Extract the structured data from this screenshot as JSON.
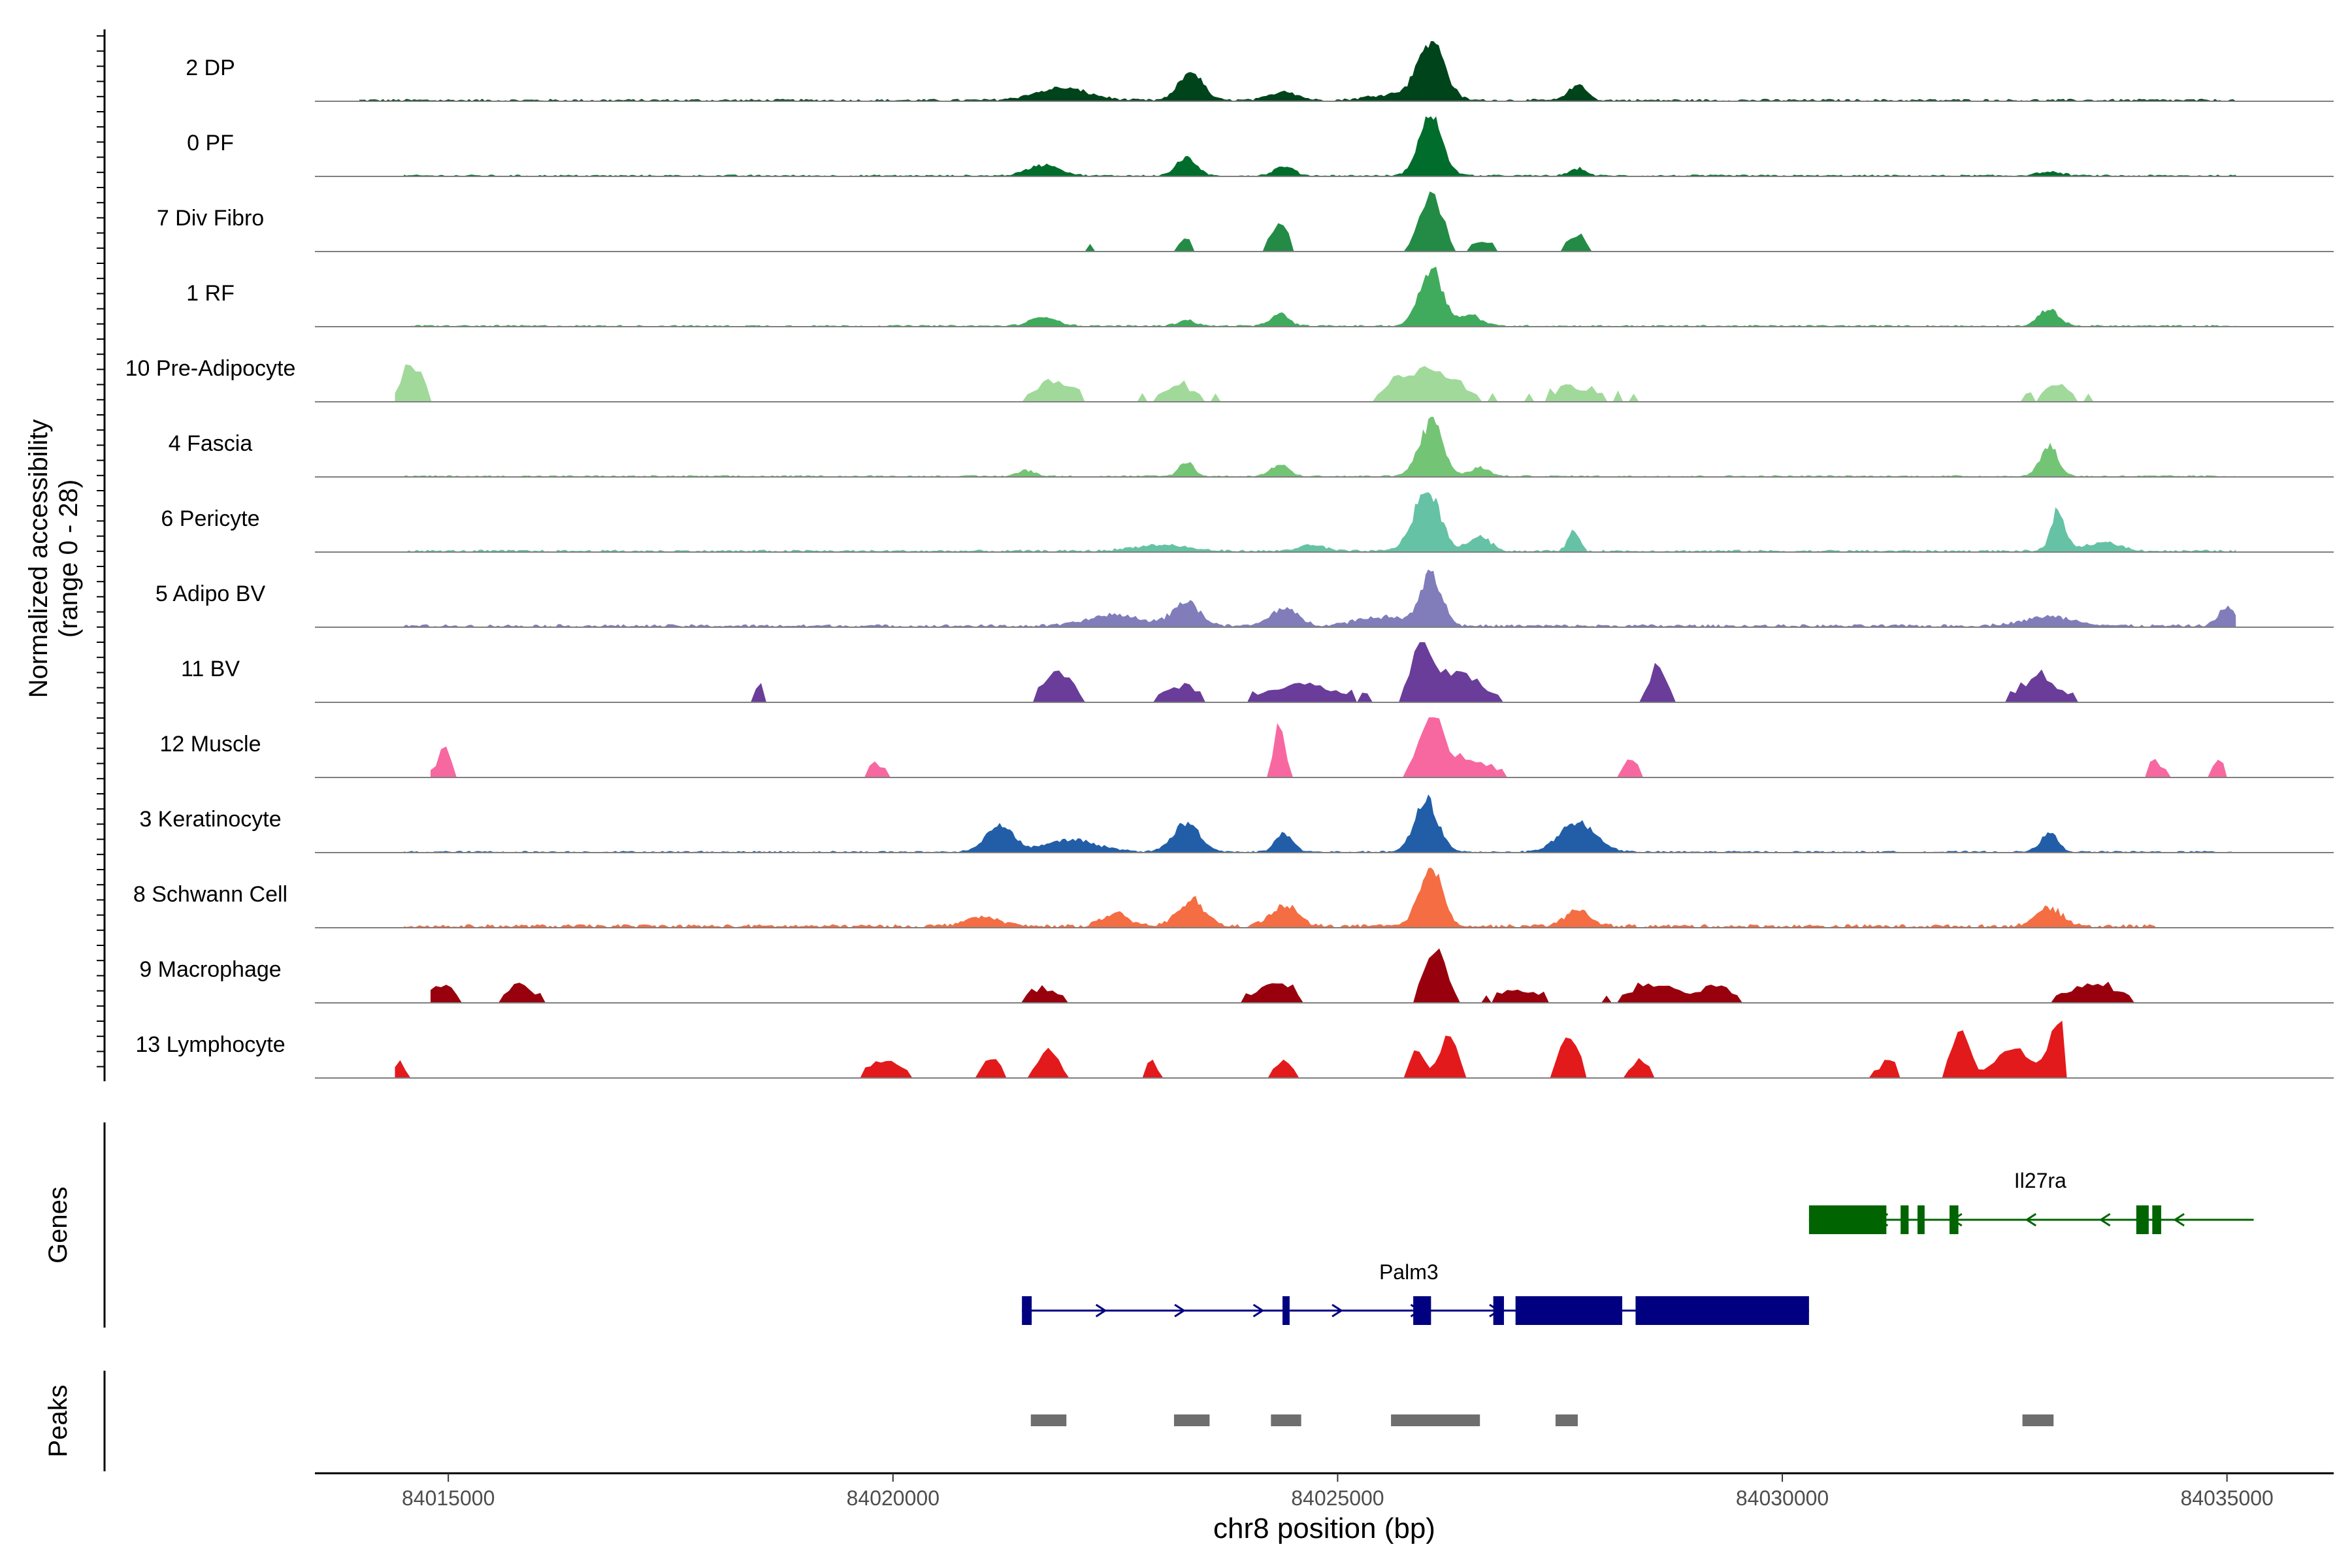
{
  "chart_data": {
    "type": "area",
    "title": "",
    "region": "chr8",
    "xlabel": "chr8 position (bp)",
    "ylabel": [
      "Normalized accessibility",
      "(range 0 - 28)"
    ],
    "y_range": [
      0,
      28
    ],
    "xlim": [
      84013500,
      84036200
    ],
    "x_ticks": [
      84015000,
      84020000,
      84025000,
      84030000,
      84035000
    ],
    "x_tick_labels": [
      "84015000",
      "84020000",
      "84025000",
      "84030000",
      "84035000"
    ],
    "track_axis_labels": {
      "genes": "Genes",
      "peaks": "Peaks"
    },
    "series": [
      {
        "name": "2 DP",
        "color": "#00441b",
        "style": "smooth",
        "noise": 0.04,
        "span": [
          84014000,
          84035100
        ],
        "peaks": [
          [
            84026050,
            150,
            1.0
          ],
          [
            84023350,
            130,
            0.48
          ],
          [
            84021900,
            300,
            0.2
          ],
          [
            84024400,
            150,
            0.15
          ],
          [
            84027700,
            100,
            0.25
          ],
          [
            84025600,
            250,
            0.1
          ]
        ]
      },
      {
        "name": "0 PF",
        "color": "#006d2c",
        "style": "smooth",
        "noise": 0.03,
        "span": [
          84014500,
          84035100
        ],
        "peaks": [
          [
            84026050,
            130,
            1.0
          ],
          [
            84023300,
            110,
            0.3
          ],
          [
            84021700,
            180,
            0.18
          ],
          [
            84024400,
            110,
            0.15
          ],
          [
            84027700,
            90,
            0.12
          ],
          [
            84033000,
            150,
            0.06
          ]
        ]
      },
      {
        "name": "7 Div Fibro",
        "color": "#238b45",
        "style": "blocky",
        "noise": 0.05,
        "span": [
          84014400,
          84034300
        ],
        "peaks": [
          [
            84026050,
            120,
            1.0
          ],
          [
            84024350,
            90,
            0.5
          ],
          [
            84023300,
            80,
            0.2
          ],
          [
            84027700,
            100,
            0.25
          ],
          [
            84026600,
            150,
            0.15
          ],
          [
            84022200,
            60,
            0.15
          ],
          [
            84025400,
            200,
            0.1
          ]
        ]
      },
      {
        "name": "1 RF",
        "color": "#41ab5d",
        "style": "smooth",
        "noise": 0.03,
        "span": [
          84014500,
          84035100
        ],
        "peaks": [
          [
            84026050,
            130,
            1.0
          ],
          [
            84033000,
            110,
            0.28
          ],
          [
            84024350,
            100,
            0.2
          ],
          [
            84021700,
            150,
            0.15
          ],
          [
            84023300,
            100,
            0.1
          ],
          [
            84026500,
            120,
            0.18
          ]
        ]
      },
      {
        "name": "10 Pre-Adipocyte",
        "color": "#a1d99b",
        "style": "blocky",
        "noise": 0.12,
        "span": [
          84014400,
          84034000
        ],
        "peaks": [
          [
            84014600,
            120,
            0.6
          ],
          [
            84026100,
            300,
            0.45
          ],
          [
            84021800,
            200,
            0.35
          ],
          [
            84023200,
            200,
            0.25
          ],
          [
            84025700,
            200,
            0.22
          ],
          [
            84027700,
            300,
            0.2
          ],
          [
            84033100,
            150,
            0.3
          ]
        ]
      },
      {
        "name": "4 Fascia",
        "color": "#74c476",
        "style": "smooth",
        "noise": 0.03,
        "span": [
          84014500,
          84035100
        ],
        "peaks": [
          [
            84026050,
            130,
            0.9
          ],
          [
            84033000,
            100,
            0.5
          ],
          [
            84023300,
            80,
            0.25
          ],
          [
            84024350,
            100,
            0.2
          ],
          [
            84026600,
            100,
            0.15
          ],
          [
            84021500,
            100,
            0.1
          ]
        ]
      },
      {
        "name": "6 Pericyte",
        "color": "#66c2a4",
        "style": "smooth",
        "noise": 0.04,
        "span": [
          84014500,
          84035100
        ],
        "peaks": [
          [
            84026000,
            150,
            1.0
          ],
          [
            84033100,
            80,
            0.65
          ],
          [
            84027650,
            60,
            0.35
          ],
          [
            84026600,
            120,
            0.25
          ],
          [
            84023000,
            300,
            0.1
          ],
          [
            84024700,
            150,
            0.1
          ],
          [
            84033600,
            200,
            0.15
          ]
        ]
      },
      {
        "name": "5 Adipo BV",
        "color": "#807dba",
        "style": "smooth",
        "noise": 0.05,
        "span": [
          84014500,
          84035100
        ],
        "peaks": [
          [
            84026050,
            120,
            0.85
          ],
          [
            84023300,
            150,
            0.4
          ],
          [
            84024400,
            150,
            0.3
          ],
          [
            84035000,
            100,
            0.3
          ],
          [
            84022500,
            300,
            0.18
          ],
          [
            84033000,
            300,
            0.15
          ],
          [
            84025500,
            300,
            0.15
          ]
        ]
      },
      {
        "name": "11 BV",
        "color": "#6a3d9a",
        "style": "blocky",
        "noise": 0.1,
        "span": [
          84018400,
          84034500
        ],
        "peaks": [
          [
            84025950,
            100,
            0.9
          ],
          [
            84026300,
            300,
            0.5
          ],
          [
            84021850,
            150,
            0.5
          ],
          [
            84028600,
            100,
            0.55
          ],
          [
            84032900,
            200,
            0.4
          ],
          [
            84024600,
            400,
            0.3
          ],
          [
            84023200,
            200,
            0.25
          ],
          [
            84018500,
            50,
            0.3
          ]
        ]
      },
      {
        "name": "12 Muscle",
        "color": "#f768a1",
        "style": "blocky",
        "noise": 0.08,
        "span": [
          84014800,
          84035000
        ],
        "peaks": [
          [
            84026050,
            140,
            1.0
          ],
          [
            84024350,
            60,
            0.9
          ],
          [
            84014950,
            70,
            0.5
          ],
          [
            84026500,
            200,
            0.3
          ],
          [
            84028300,
            80,
            0.3
          ],
          [
            84019800,
            80,
            0.25
          ],
          [
            84034900,
            60,
            0.3
          ],
          [
            84034200,
            60,
            0.3
          ]
        ]
      },
      {
        "name": "3 Keratinocyte",
        "color": "#225ea8",
        "style": "smooth",
        "noise": 0.03,
        "span": [
          84014500,
          84035100
        ],
        "peaks": [
          [
            84026000,
            130,
            0.85
          ],
          [
            84023300,
            150,
            0.48
          ],
          [
            84021200,
            150,
            0.45
          ],
          [
            84027700,
            200,
            0.5
          ],
          [
            84024400,
            100,
            0.3
          ],
          [
            84033000,
            100,
            0.3
          ],
          [
            84022000,
            300,
            0.2
          ]
        ]
      },
      {
        "name": "8 Schwann Cell",
        "color": "#f46d43",
        "style": "smooth",
        "noise": 0.06,
        "span": [
          84014500,
          84034200
        ],
        "peaks": [
          [
            84026050,
            130,
            1.0
          ],
          [
            84023350,
            150,
            0.45
          ],
          [
            84024400,
            150,
            0.35
          ],
          [
            84022500,
            150,
            0.2
          ],
          [
            84027700,
            150,
            0.25
          ],
          [
            84033000,
            150,
            0.3
          ],
          [
            84021000,
            200,
            0.15
          ],
          [
            84034400,
            100,
            0.2
          ]
        ]
      },
      {
        "name": "9 Macrophage",
        "color": "#99000d",
        "style": "blocky",
        "noise": 0.08,
        "span": [
          84014800,
          84035200
        ],
        "peaks": [
          [
            84026100,
            120,
            0.9
          ],
          [
            84024300,
            200,
            0.35
          ],
          [
            84014900,
            150,
            0.3
          ],
          [
            84015800,
            150,
            0.3
          ],
          [
            84033500,
            300,
            0.3
          ],
          [
            84028600,
            300,
            0.3
          ],
          [
            84021700,
            200,
            0.2
          ],
          [
            84027000,
            300,
            0.2
          ],
          [
            84029300,
            150,
            0.25
          ]
        ]
      },
      {
        "name": "13 Lymphocyte",
        "color": "#e31a1c",
        "style": "blocky",
        "noise": 0.05,
        "span": [
          84014400,
          84033200
        ],
        "peaks": [
          [
            84033100,
            100,
            1.0
          ],
          [
            84032000,
            100,
            0.75
          ],
          [
            84027600,
            100,
            0.75
          ],
          [
            84026250,
            100,
            0.7
          ],
          [
            84025900,
            80,
            0.5
          ],
          [
            84021750,
            100,
            0.55
          ],
          [
            84019900,
            200,
            0.3
          ],
          [
            84031200,
            100,
            0.3
          ],
          [
            84032600,
            200,
            0.5
          ],
          [
            84021100,
            100,
            0.3
          ],
          [
            84014450,
            50,
            0.3
          ],
          [
            84022900,
            50,
            0.3
          ],
          [
            84024400,
            100,
            0.3
          ],
          [
            84028400,
            100,
            0.3
          ]
        ]
      }
    ],
    "genes": [
      {
        "name": "Palm3",
        "color": "#000080",
        "strand": "+",
        "start": 84021450,
        "end": 84030300,
        "exons": [
          [
            84021450,
            84021560
          ],
          [
            84024380,
            84024460
          ],
          [
            84025850,
            84026050
          ],
          [
            84026750,
            84026870
          ],
          [
            84027000,
            84028200
          ],
          [
            84028350,
            84030300
          ]
        ]
      },
      {
        "name": "Il27ra",
        "color": "#006400",
        "strand": "-",
        "start": 84030300,
        "end": 84035300,
        "exons": [
          [
            84030300,
            84031170
          ],
          [
            84031330,
            84031420
          ],
          [
            84031520,
            84031600
          ],
          [
            84031880,
            84031980
          ],
          [
            84033980,
            84034120
          ],
          [
            84034160,
            84034260
          ]
        ]
      }
    ],
    "peaks_track": [
      [
        84021550,
        84021950
      ],
      [
        84023160,
        84023560
      ],
      [
        84024250,
        84024590
      ],
      [
        84025600,
        84026600
      ],
      [
        84027450,
        84027700
      ],
      [
        84032700,
        84033050
      ]
    ]
  }
}
